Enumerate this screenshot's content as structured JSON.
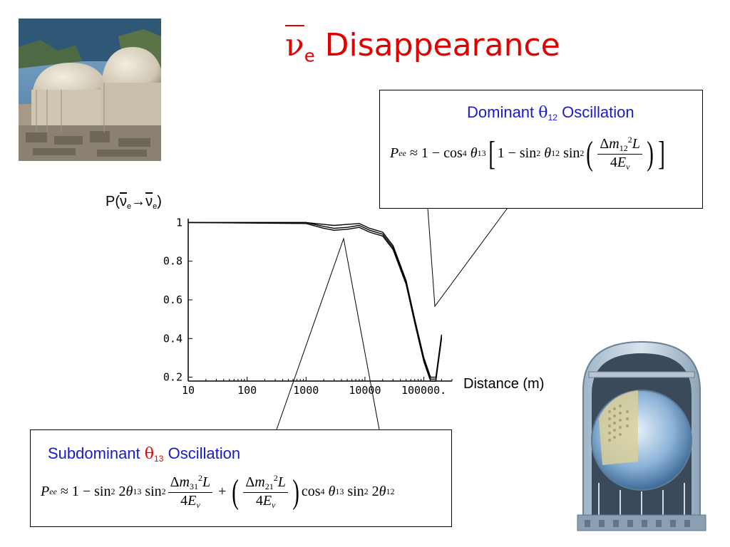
{
  "slide": {
    "title_symbol": "ν",
    "title_symbol_sub": "e",
    "title_text": "Disappearance"
  },
  "callout_top": {
    "heading_prefix": "Dominant ",
    "heading_theta": "θ",
    "heading_sub": "12",
    "heading_suffix": " Oscillation"
  },
  "callout_bottom": {
    "heading_prefix": "Subdominant ",
    "heading_theta": "θ",
    "heading_sub": "13",
    "heading_suffix": " Oscillation"
  },
  "chart_data": {
    "type": "line",
    "title": "",
    "ylabel": "P(ν̄e→ν̄e)",
    "xlabel": "Distance (m)",
    "x_scale": "log",
    "xlim": [
      10,
      300000
    ],
    "ylim": [
      0.18,
      1.02
    ],
    "x_ticks": [
      10,
      100,
      1000,
      10000,
      100000
    ],
    "x_tick_labels": [
      "10",
      "100",
      "1000",
      "10000",
      "100000."
    ],
    "y_ticks": [
      0.2,
      0.4,
      0.6,
      0.8,
      1
    ],
    "y_tick_labels": [
      "0.2",
      "0.4",
      "0.6",
      "0.8",
      "1"
    ],
    "series": [
      {
        "x": [
          10,
          1000,
          2000,
          3000,
          5000,
          8000,
          12000,
          20000,
          30000,
          50000,
          70000,
          100000,
          130000,
          160000,
          200000
        ],
        "y": [
          1.0,
          1.0,
          0.99,
          0.985,
          0.99,
          0.995,
          0.97,
          0.95,
          0.88,
          0.7,
          0.5,
          0.3,
          0.2,
          0.2,
          0.42
        ]
      },
      {
        "x": [
          10,
          1000,
          2000,
          3000,
          5000,
          8000,
          12000,
          20000,
          30000,
          50000,
          70000,
          100000,
          130000,
          160000,
          200000
        ],
        "y": [
          1.0,
          1.0,
          0.98,
          0.97,
          0.975,
          0.985,
          0.96,
          0.94,
          0.87,
          0.69,
          0.49,
          0.29,
          0.19,
          0.19,
          0.41
        ]
      },
      {
        "x": [
          10,
          1000,
          2000,
          3000,
          5000,
          8000,
          12000,
          20000,
          30000,
          50000,
          70000,
          100000,
          130000,
          160000,
          200000
        ],
        "y": [
          1.0,
          0.995,
          0.97,
          0.96,
          0.965,
          0.975,
          0.95,
          0.93,
          0.86,
          0.68,
          0.48,
          0.28,
          0.18,
          0.18,
          0.4
        ]
      }
    ]
  },
  "colors": {
    "title": "#e00000",
    "heading": "#1a1acc",
    "theta13": "#e00000"
  }
}
